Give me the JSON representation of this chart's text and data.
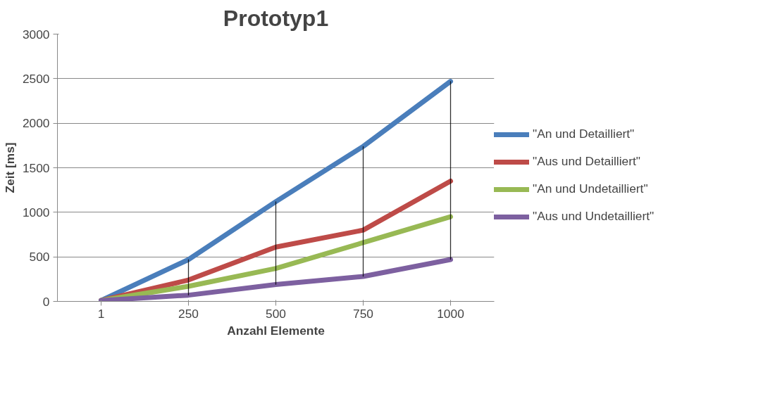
{
  "chart_data": {
    "type": "line",
    "title": "Prototyp1",
    "xlabel": "Anzahl Elemente",
    "ylabel": "Zeit [ms]",
    "categories": [
      "1",
      "250",
      "500",
      "750",
      "1000"
    ],
    "series": [
      {
        "name": "\"An und Detailliert\"",
        "color": "#4a7ebb",
        "values": [
          10,
          470,
          1120,
          1740,
          2470
        ]
      },
      {
        "name": "\"Aus und Detailliert\"",
        "color": "#be4b48",
        "values": [
          10,
          240,
          610,
          800,
          1350
        ]
      },
      {
        "name": "\"An und Undetailliert\"",
        "color": "#98b954",
        "values": [
          10,
          170,
          370,
          660,
          950
        ]
      },
      {
        "name": "\"Aus und Undetailliert\"",
        "color": "#7d60a0",
        "values": [
          10,
          70,
          190,
          280,
          470
        ]
      },
      {
        "type": "bar",
        "color": "#000000",
        "base": [
          null,
          70,
          190,
          280,
          470
        ],
        "values": [
          null,
          400,
          930,
          1460,
          2000
        ]
      }
    ],
    "ylim": [
      0,
      3000
    ],
    "yticks": [
      0,
      500,
      1000,
      1500,
      2000,
      2500,
      3000
    ],
    "grid": "y",
    "legend": "right",
    "marker": "none",
    "line_style": "solid"
  }
}
